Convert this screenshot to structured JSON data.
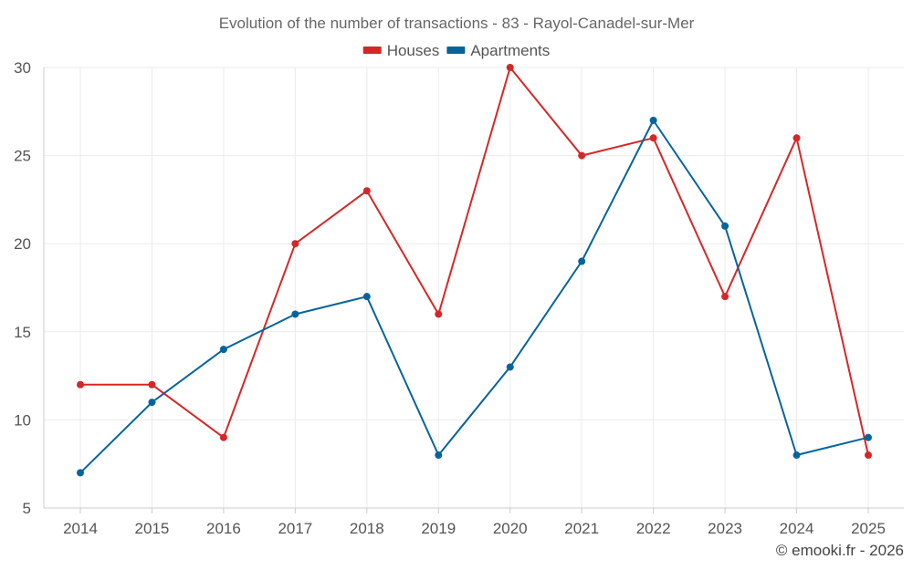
{
  "chart_data": {
    "type": "line",
    "title": "Evolution of the number of transactions - 83 - Rayol-Canadel-sur-Mer",
    "categories": [
      "2014",
      "2015",
      "2016",
      "2017",
      "2018",
      "2019",
      "2020",
      "2021",
      "2022",
      "2023",
      "2024",
      "2025"
    ],
    "series": [
      {
        "name": "Houses",
        "color": "#d62728",
        "values": [
          12,
          12,
          9,
          20,
          23,
          16,
          30,
          25,
          26,
          17,
          26,
          8
        ]
      },
      {
        "name": "Apartments",
        "color": "#06649c",
        "values": [
          7,
          11,
          14,
          16,
          17,
          8,
          13,
          19,
          27,
          21,
          8,
          9
        ]
      }
    ],
    "ylim": [
      5,
      30
    ],
    "yticks": [
      5,
      10,
      15,
      20,
      25,
      30
    ],
    "grid": true,
    "legend_position": "top-center",
    "xlabel": "",
    "ylabel": ""
  },
  "credit": "© emooki.fr - 2026"
}
